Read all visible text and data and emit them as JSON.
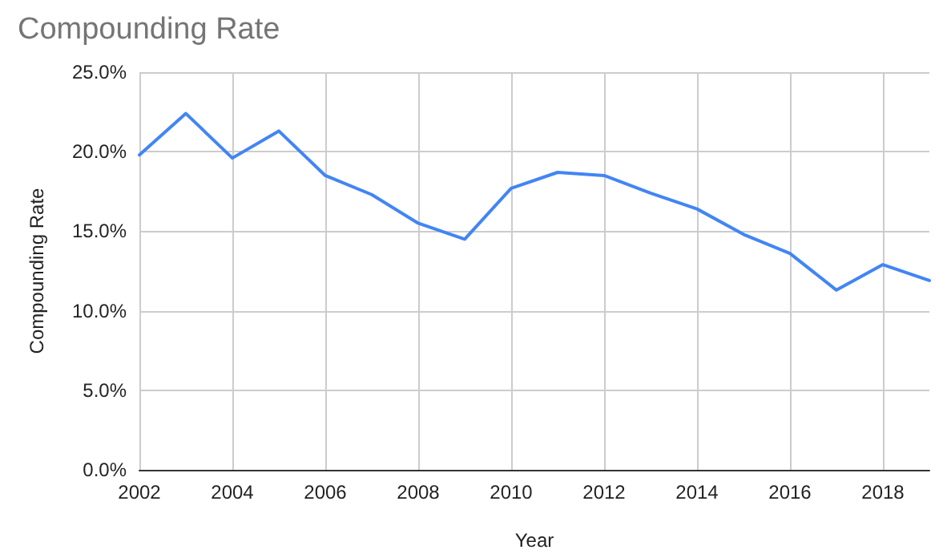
{
  "chart_data": {
    "type": "line",
    "title": "Compounding Rate",
    "xlabel": "Year",
    "ylabel": "Compounding Rate",
    "x": [
      2002,
      2003,
      2004,
      2005,
      2006,
      2007,
      2008,
      2009,
      2010,
      2011,
      2012,
      2013,
      2014,
      2015,
      2016,
      2017,
      2018,
      2019
    ],
    "series": [
      {
        "color": "#4285f4",
        "values": [
          19.8,
          22.4,
          19.6,
          21.3,
          18.5,
          17.3,
          15.5,
          14.5,
          17.7,
          18.7,
          18.5,
          17.4,
          16.4,
          14.8,
          13.6,
          11.3,
          12.9,
          11.9
        ]
      }
    ],
    "xlim": [
      2002,
      2019
    ],
    "xticks": [
      2002,
      2004,
      2006,
      2008,
      2010,
      2012,
      2014,
      2016,
      2018
    ],
    "ylim": [
      0,
      25
    ],
    "yticks": [
      {
        "value": 0,
        "label": "0.0%"
      },
      {
        "value": 5,
        "label": "5.0%"
      },
      {
        "value": 10,
        "label": "10.0%"
      },
      {
        "value": 15,
        "label": "15.0%"
      },
      {
        "value": 20,
        "label": "20.0%"
      },
      {
        "value": 25,
        "label": "25.0%"
      }
    ],
    "grid": true,
    "marker": "none",
    "line_style": "solid"
  }
}
